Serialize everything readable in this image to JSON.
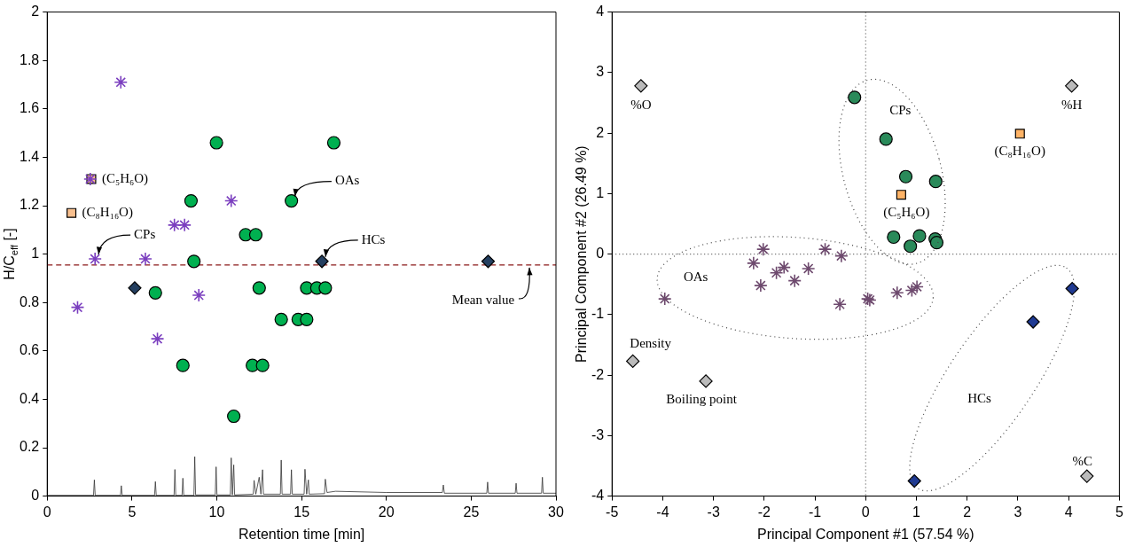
{
  "chart_data": [
    {
      "type": "scatter",
      "xlabel": "Retention time [min]",
      "ylabel": "H/C$_{eff}$ [-]",
      "xlim": [
        0,
        30
      ],
      "xticks": [
        0,
        5,
        10,
        15,
        20,
        25,
        30
      ],
      "ylim": [
        0,
        2
      ],
      "yticks": [
        0,
        0.2,
        0.4,
        0.6,
        0.8,
        1,
        1.2,
        1.4,
        1.6,
        1.8,
        2
      ],
      "legend": false,
      "series": [
        {
          "type": "line",
          "color": "#333333",
          "marker": "none",
          "x": [
            0,
            2.73,
            2.78,
            2.83,
            4.32,
            4.37,
            4.42,
            6.33,
            6.38,
            6.43,
            7.48,
            7.53,
            7.58,
            7.95,
            8.0,
            8.05,
            8.65,
            8.7,
            8.75,
            9.91,
            9.96,
            10.01,
            10.8,
            10.85,
            10.92,
            11.0,
            11.05,
            12.15,
            12.2,
            12.3,
            12.5,
            12.6,
            12.7,
            12.75,
            13.75,
            13.8,
            13.85,
            14.35,
            14.4,
            14.45,
            15.15,
            15.2,
            15.3,
            15.4,
            15.45,
            16.35,
            16.4,
            16.5,
            17,
            20,
            23.3,
            23.36,
            23.42,
            25.92,
            25.97,
            26.02,
            27.6,
            27.65,
            27.7,
            29.15,
            29.2,
            29.25,
            30
          ],
          "values": [
            0.003,
            0.003,
            0.067,
            0.003,
            0.003,
            0.043,
            0.003,
            0.003,
            0.06,
            0.003,
            0.003,
            0.11,
            0.003,
            0.003,
            0.074,
            0.003,
            0.003,
            0.163,
            0.005,
            0.005,
            0.121,
            0.005,
            0.005,
            0.158,
            0.005,
            0.129,
            0.005,
            0.008,
            0.065,
            0.008,
            0.078,
            0.008,
            0.109,
            0.008,
            0.008,
            0.149,
            0.008,
            0.008,
            0.109,
            0.008,
            0.008,
            0.111,
            0.008,
            0.067,
            0.008,
            0.01,
            0.07,
            0.015,
            0.02,
            0.015,
            0.015,
            0.046,
            0.012,
            0.012,
            0.058,
            0.012,
            0.012,
            0.053,
            0.012,
            0.012,
            0.078,
            0.012,
            0.012
          ]
        },
        {
          "color": "#7b3fbf",
          "marker": "cross",
          "x": [
            4.34,
            2.54,
            2.82,
            5.79,
            1.79,
            7.5,
            8.1,
            10.85,
            8.94,
            6.5
          ],
          "values": [
            1.71,
            1.31,
            0.98,
            0.98,
            0.78,
            1.12,
            1.12,
            1.22,
            0.83,
            0.65
          ]
        },
        {
          "color": "#00b050",
          "marker": "circle",
          "x": [
            9.98,
            16.9,
            8.48,
            14.4,
            11.7,
            12.3,
            8.65,
            6.38,
            12.5,
            15.3,
            15.9,
            16.4,
            13.8,
            14.8,
            15.3,
            8.0,
            12.1,
            12.7,
            11.0
          ],
          "values": [
            1.46,
            1.46,
            1.22,
            1.22,
            1.08,
            1.08,
            0.97,
            0.84,
            0.86,
            0.86,
            0.86,
            0.86,
            0.73,
            0.73,
            0.73,
            0.54,
            0.54,
            0.54,
            0.33
          ]
        },
        {
          "color": "#243f60",
          "marker": "diamond",
          "x": [
            5.16,
            16.2,
            26.0
          ],
          "values": [
            0.86,
            0.97,
            0.97
          ]
        },
        {
          "color": "#f9c08f",
          "marker": "square",
          "x": [
            2.6,
            1.43
          ],
          "values": [
            1.31,
            1.17
          ]
        }
      ],
      "ref_lines": [
        {
          "axis": "y",
          "value": 0.955,
          "label": "Mean value",
          "color": "#8b1a1a",
          "line_style": "dashed"
        }
      ],
      "annotations": [
        {
          "text": "(C₅H₆O)",
          "x": 2.6,
          "y": 1.31
        },
        {
          "text": "(C₈H₁₆O)",
          "x": 1.43,
          "y": 1.17
        },
        {
          "text": "CPs",
          "x": 2.82,
          "y": 0.98
        },
        {
          "text": "OAs",
          "x": 14.4,
          "y": 1.22
        },
        {
          "text": "HCs",
          "x": 16.2,
          "y": 0.97
        }
      ]
    },
    {
      "type": "scatter",
      "xlabel": "Principal Component #1 (57.54 %)",
      "ylabel": "Principal Component #2 (26.49 %)",
      "xlim": [
        -5,
        5
      ],
      "xticks": [
        -5,
        -4,
        -3,
        -2,
        -1,
        0,
        1,
        2,
        3,
        4,
        5
      ],
      "ylim": [
        -4,
        4
      ],
      "yticks": [
        -4,
        -3,
        -2,
        -1,
        0,
        1,
        2,
        3,
        4
      ],
      "legend": false,
      "series": [
        {
          "color": "#2a8a5a",
          "marker": "circle",
          "x": [
            -0.22,
            0.4,
            0.79,
            1.38,
            0.55,
            1.06,
            0.88,
            1.37,
            1.4
          ],
          "values": [
            2.59,
            1.9,
            1.28,
            1.2,
            0.28,
            0.3,
            0.13,
            0.25,
            0.19
          ]
        },
        {
          "color": "#6e4a6e",
          "marker": "cross",
          "x": [
            -3.96,
            -2.02,
            -2.21,
            -2.07,
            -1.61,
            -1.76,
            -1.4,
            -1.13,
            -0.8,
            -0.48,
            -0.51,
            0.04,
            0.08,
            0.62,
            0.91,
            1.01
          ],
          "values": [
            -0.74,
            0.08,
            -0.15,
            -0.52,
            -0.22,
            -0.31,
            -0.44,
            -0.24,
            0.08,
            -0.03,
            -0.83,
            -0.74,
            -0.76,
            -0.64,
            -0.6,
            -0.54
          ]
        },
        {
          "color": "#1f3a93",
          "marker": "diamond",
          "x": [
            4.07,
            3.3,
            0.96
          ],
          "values": [
            -0.57,
            -1.12,
            -3.75
          ]
        },
        {
          "color": "#ffb366",
          "marker": "square",
          "x": [
            0.7,
            3.04
          ],
          "values": [
            0.98,
            1.99
          ]
        },
        {
          "color": "#bbbbbb",
          "marker": "diamond",
          "x": [
            -4.43,
            4.06,
            -4.59,
            -3.15,
            4.36
          ],
          "values": [
            2.78,
            2.78,
            -1.77,
            -2.1,
            -3.67
          ]
        }
      ],
      "ref_lines": [
        {
          "axis": "x",
          "value": 0,
          "color": "#555555",
          "line_style": "dotted"
        },
        {
          "axis": "y",
          "value": 0,
          "color": "#555555",
          "line_style": "dotted"
        }
      ],
      "annotations": [
        {
          "text": "%O",
          "x": -4.43,
          "y": 2.78
        },
        {
          "text": "%H",
          "x": 4.06,
          "y": 2.78
        },
        {
          "text": "Density",
          "x": -4.59,
          "y": -1.77
        },
        {
          "text": "Boiling point",
          "x": -3.15,
          "y": -2.1
        },
        {
          "text": "%C",
          "x": 4.36,
          "y": -3.67
        },
        {
          "text": "(C₅H₆O)",
          "x": 0.7,
          "y": 0.98
        },
        {
          "text": "(C₈H₁₆O)",
          "x": 3.04,
          "y": 1.99
        },
        "CPs",
        "OAs",
        "HCs"
      ]
    }
  ]
}
